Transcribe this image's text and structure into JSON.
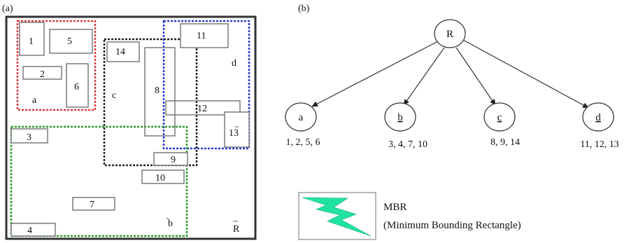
{
  "panel_a": {
    "label": "(a)",
    "region_labels": {
      "a": "a",
      "b": "b",
      "c": "c",
      "d": "d",
      "R": "R"
    },
    "rect_labels": [
      "1",
      "2",
      "3",
      "4",
      "5",
      "6",
      "7",
      "8",
      "9",
      "10",
      "11",
      "12",
      "13",
      "14"
    ],
    "colors": {
      "outer_border": "#333333",
      "mbr_a": "#e0393d",
      "mbr_b": "#2a9a2a",
      "mbr_c": "#222222",
      "mbr_d": "#2a38d8",
      "rect": "#7a7a7a"
    }
  },
  "panel_b": {
    "label": "(b)",
    "root": "R",
    "children": [
      {
        "label": "a",
        "members": "1, 2, 5, 6"
      },
      {
        "label": "b",
        "members": "3, 4, 7, 10"
      },
      {
        "label": "c",
        "members": "8, 9, 14"
      },
      {
        "label": "d",
        "members": "11, 12, 13"
      }
    ]
  },
  "legend": {
    "title": "MBR",
    "subtitle": "(Minimum Bounding Rectangle)",
    "icon": "lightning-bolt-icon",
    "icon_color": "#1fe3a3"
  }
}
